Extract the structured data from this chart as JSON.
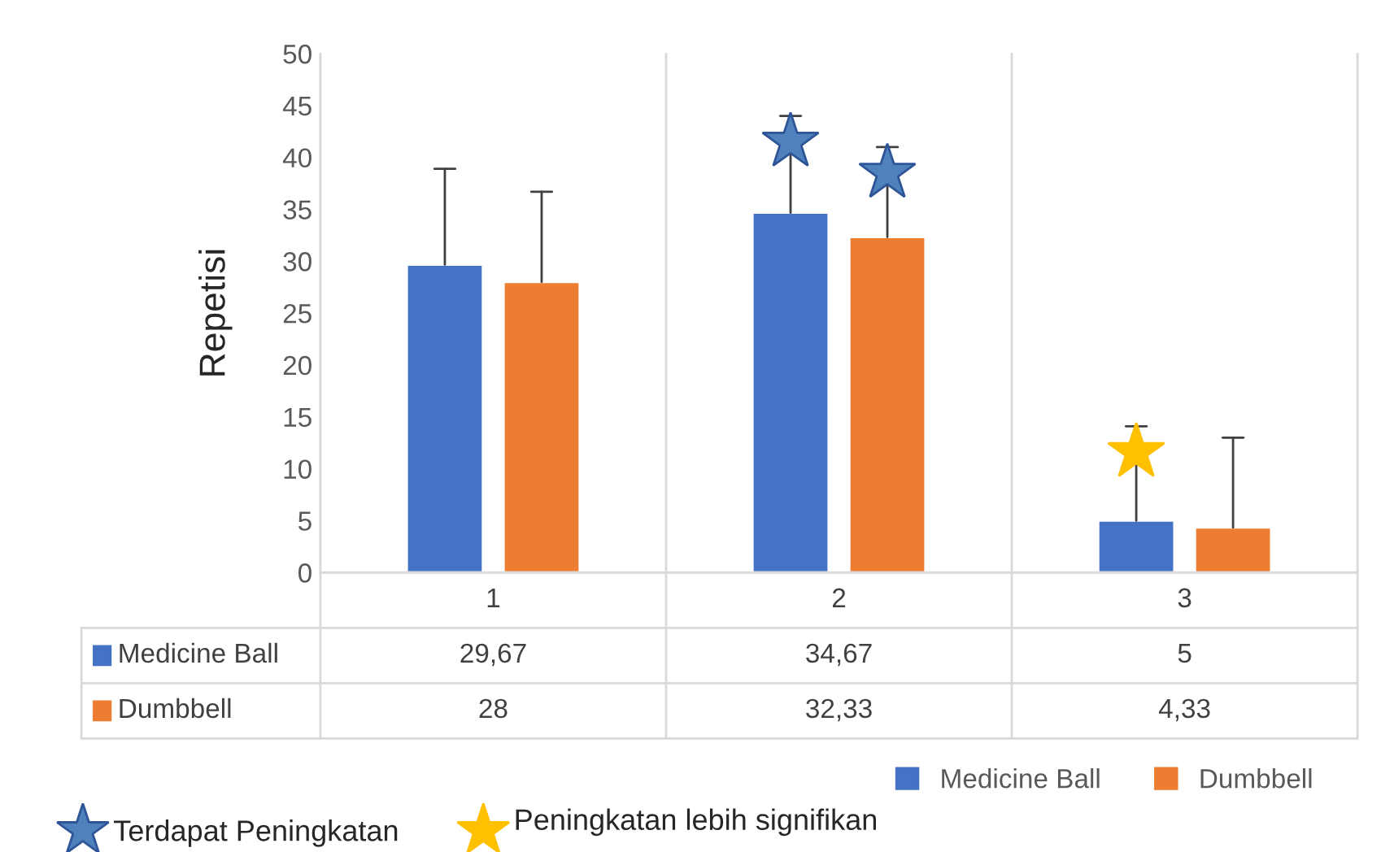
{
  "chart_data": {
    "type": "bar",
    "ylabel": "Repetisi",
    "categories": [
      "1",
      "2",
      "3"
    ],
    "series": [
      {
        "name": "Medicine Ball",
        "color": "#4472c4",
        "values": [
          29.67,
          34.67,
          5
        ],
        "value_labels": [
          "29,67",
          "34,67",
          "5"
        ],
        "errors": [
          [
            29.67,
            38.9
          ],
          [
            34.67,
            44.0
          ],
          [
            5,
            14.1
          ]
        ]
      },
      {
        "name": "Dumbbell",
        "color": "#ed7d31",
        "values": [
          28,
          32.33,
          4.33
        ],
        "value_labels": [
          "28",
          "32,33",
          "4,33"
        ],
        "errors": [
          [
            28,
            36.7
          ],
          [
            32.33,
            41.0
          ],
          [
            4.33,
            13.0
          ]
        ]
      }
    ],
    "ylim": [
      0,
      50
    ],
    "yticks": [
      0,
      5,
      10,
      15,
      20,
      25,
      30,
      35,
      40,
      45,
      50
    ],
    "grid": false,
    "legend": "bottom",
    "annotations": [
      "Terdapat Peningkatan",
      "Peningkatan lebih signifikan"
    ]
  }
}
